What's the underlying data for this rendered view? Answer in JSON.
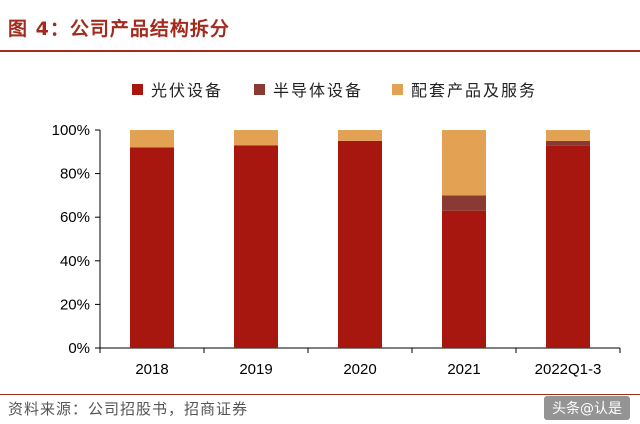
{
  "figure": {
    "title": "图 4：公司产品结构拆分",
    "source": "资料来源：公司招股书，招商证券",
    "watermark": "头条@认是"
  },
  "colors": {
    "title": "#a52a1e",
    "series": [
      "#a8170f",
      "#8b3a33",
      "#e3a154"
    ]
  },
  "chart_data": {
    "type": "bar",
    "stacked": true,
    "categories": [
      "2018",
      "2019",
      "2020",
      "2021",
      "2022Q1-3"
    ],
    "series": [
      {
        "name": "光伏设备",
        "values": [
          92,
          93,
          95,
          63,
          93
        ]
      },
      {
        "name": "半导体设备",
        "values": [
          0,
          0,
          0,
          7,
          2
        ]
      },
      {
        "name": "配套产品及服务",
        "values": [
          8,
          7,
          5,
          30,
          5
        ]
      }
    ],
    "yticks": [
      "0%",
      "20%",
      "40%",
      "60%",
      "80%",
      "100%"
    ],
    "ylim": [
      0,
      100
    ],
    "grid": false,
    "legend": "top"
  }
}
